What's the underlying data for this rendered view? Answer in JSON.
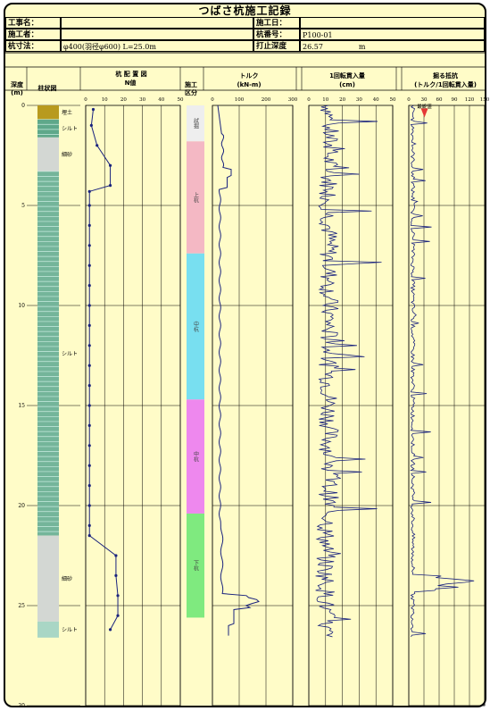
{
  "title": "つばさ杭施工記録",
  "info": {
    "koji_label": "工事名：",
    "koji_value": "",
    "seko_label": "施工者：",
    "seko_value": "",
    "sunpo_label": "杭寸法：",
    "sunpo_value": "φ400(羽径φ600) L=25.0m",
    "date_label": "施工日：",
    "date_value": "",
    "pileno_label": "杭番号：",
    "pileno_value": "P100-01",
    "depth_label": "打止深度",
    "depth_value": "26.57",
    "depth_unit": "m"
  },
  "columns": {
    "depth": "深度\n(m)",
    "soil": "柱状図",
    "boring": "杭 配 置 図",
    "n_value": "N値",
    "section": "施工\n区分",
    "torque": "トルク",
    "torque_unit": "(kN-m)",
    "penetration": "1回転貫入量",
    "penetration_unit": "(cm)",
    "ratio": "掘る抵抗",
    "ratio_unit": "(トルク/1回転貫入量)"
  },
  "axes": {
    "depth_ticks": [
      "0",
      "5",
      "10",
      "15",
      "20",
      "25",
      "30"
    ],
    "n_ticks": [
      "0",
      "10",
      "20",
      "30",
      "40",
      "50"
    ],
    "torque_ticks": [
      "0",
      "100",
      "200",
      "300"
    ],
    "pen_ticks": [
      "0",
      "10",
      "20",
      "30",
      "40",
      "50"
    ],
    "ratio_ticks": [
      "0",
      "30",
      "60",
      "90",
      "120",
      "150"
    ]
  },
  "soil_layers": [
    {
      "name": "埋土",
      "from": 0,
      "to": 0.7,
      "color": "#b89a1e"
    },
    {
      "name": "シルト",
      "from": 0.7,
      "to": 1.6,
      "color": "#5fa88a"
    },
    {
      "name": "細砂",
      "from": 1.6,
      "to": 3.3,
      "color": "#d3d7d3"
    },
    {
      "name": "シルト",
      "from": 3.3,
      "to": 21.5,
      "color": "#74b59a"
    },
    {
      "name": "細砂",
      "from": 21.5,
      "to": 25.8,
      "color": "#d3d7d3"
    },
    {
      "name": "シルト",
      "from": 25.8,
      "to": 26.6,
      "color": "#a9d6c5"
    }
  ],
  "sections": [
    {
      "name": "試掘",
      "from": 0,
      "to": 1.8,
      "color": "#eeeeee"
    },
    {
      "name": "上杭",
      "from": 1.8,
      "to": 7.4,
      "color": "#f4b8c4"
    },
    {
      "name": "中杭",
      "from": 7.4,
      "to": 14.7,
      "color": "#78dff0"
    },
    {
      "name": "中杭",
      "from": 14.7,
      "to": 20.4,
      "color": "#ee88ee"
    },
    {
      "name": "下杭",
      "from": 20.4,
      "to": 25.6,
      "color": "#7fea7f"
    }
  ],
  "marker_label": "最終値",
  "chart_data": {
    "type": "line",
    "depth_range": [
      0,
      30
    ],
    "n_values": {
      "depth": [
        0.2,
        1,
        2,
        3,
        4,
        4.3,
        5,
        6,
        7,
        8,
        9,
        10,
        11,
        12,
        13,
        14,
        15,
        16,
        17,
        18,
        19,
        20,
        21,
        21.5,
        22.5,
        23.5,
        24.5,
        25.5,
        26.2
      ],
      "n": [
        4,
        3,
        6,
        13,
        13,
        2,
        2,
        2,
        2,
        2,
        2,
        2,
        2,
        2,
        2,
        2,
        2,
        2,
        2,
        2,
        2,
        2,
        2,
        2,
        16,
        16,
        17,
        17,
        13
      ]
    },
    "torque_xlim": [
      0,
      300
    ],
    "pen_xlim": [
      0,
      50
    ],
    "ratio_xlim": [
      0,
      150
    ]
  }
}
